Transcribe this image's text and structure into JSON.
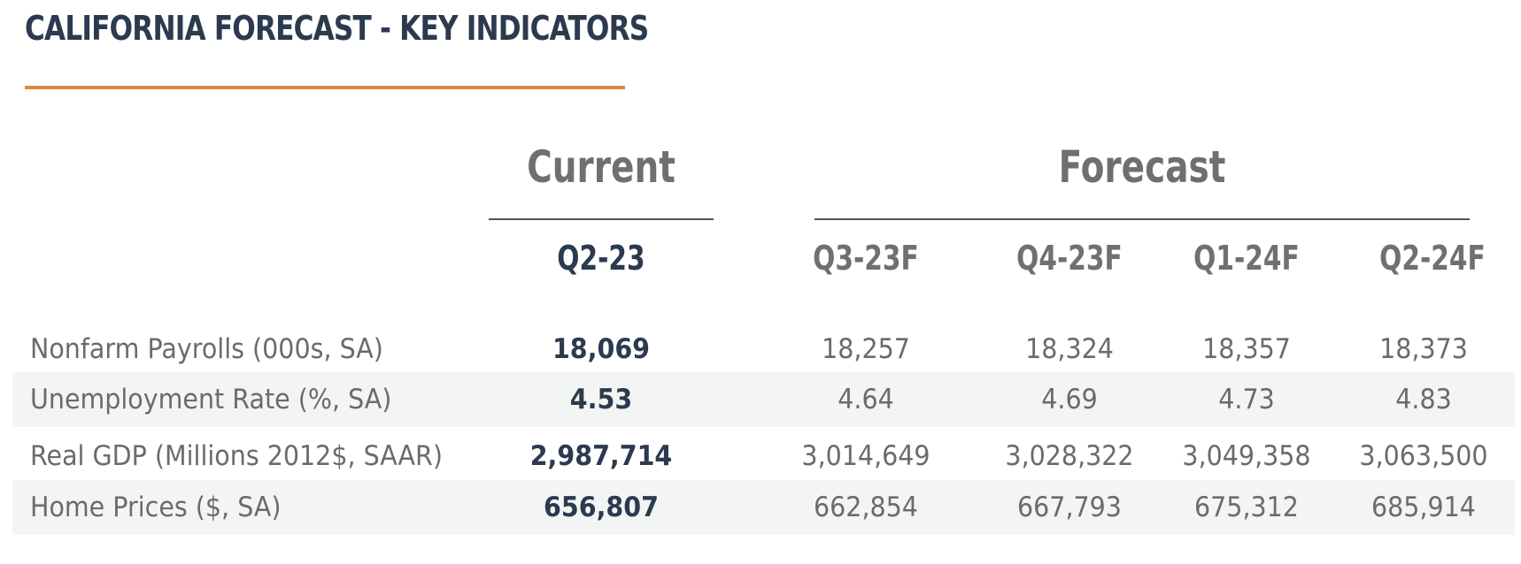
{
  "title": "CALIFORNIA FORECAST - KEY INDICATORS",
  "groups": {
    "current": "Current",
    "forecast": "Forecast"
  },
  "columns": {
    "current": "Q2-23",
    "forecast": [
      "Q3-23F",
      "Q4-23F",
      "Q1-24F",
      "Q2-24F"
    ]
  },
  "rows": [
    {
      "label": "Nonfarm Payrolls (000s, SA)",
      "current": "18,069",
      "forecast": [
        "18,257",
        "18,324",
        "18,357",
        "18,373"
      ]
    },
    {
      "label": "Unemployment Rate (%, SA)",
      "current": "4.53",
      "forecast": [
        "4.64",
        "4.69",
        "4.73",
        "4.83"
      ]
    },
    {
      "label": "Real GDP (Millions 2012$, SAAR)",
      "current": "2,987,714",
      "forecast": [
        "3,014,649",
        "3,028,322",
        "3,049,358",
        "3,063,500"
      ]
    },
    {
      "label": "Home Prices ($, SA)",
      "current": "656,807",
      "forecast": [
        "662,854",
        "667,793",
        "675,312",
        "685,914"
      ]
    }
  ],
  "colors": {
    "title": "#2b3a4f",
    "accent_rule": "#d98a3f",
    "current_values": "#2b3a4f",
    "muted_text": "#6b6b6b",
    "row_shade": "#f3f5f5"
  }
}
